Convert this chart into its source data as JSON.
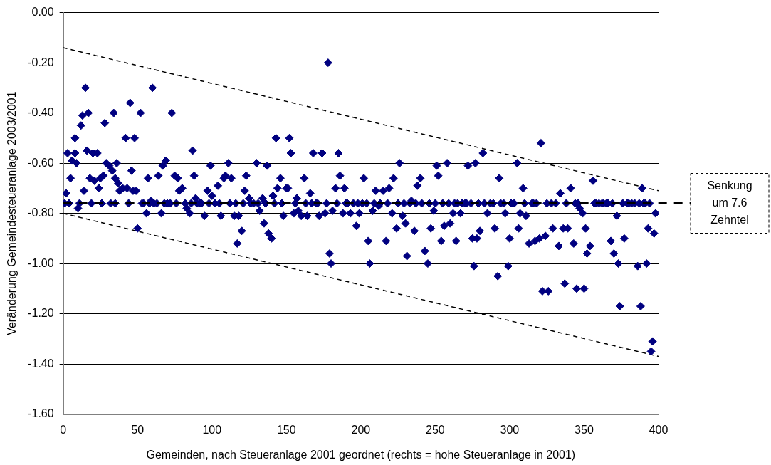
{
  "chart_data": {
    "type": "scatter",
    "xlabel": "Gemeinden, nach Steueranlage 2001 geordnet (rechts = hohe Steueranlage in 2001)",
    "ylabel": "Veränderung Gemeindesteueranlage 2003/2001",
    "xlim": [
      0,
      400
    ],
    "xticks": [
      0,
      50,
      100,
      150,
      200,
      250,
      300,
      350,
      400
    ],
    "ylim": [
      -1.6,
      0
    ],
    "yticks": [
      {
        "value": -1.6,
        "label": "-1.60"
      },
      {
        "value": -1.4,
        "label": "-1.40"
      },
      {
        "value": -1.2,
        "label": "-1.20"
      },
      {
        "value": -1,
        "label": "-1.00"
      },
      {
        "value": -0.8,
        "label": "-0.80"
      },
      {
        "value": -0.6,
        "label": "-0.60"
      },
      {
        "value": -0.4,
        "label": "-0.40"
      },
      {
        "value": -0.2,
        "label": "-0.20"
      },
      {
        "value": 0,
        "label": "0.00"
      }
    ],
    "grid": "y",
    "legend": false,
    "marker": "diamond",
    "ref_lines": [
      {
        "axis": "y",
        "value": -0.76,
        "label": "Senkung um 7.6 Zehntel",
        "color": "#000000",
        "line_style": "dashed"
      }
    ],
    "series": [
      {
        "color": "#000080",
        "x": [
          1,
          2,
          3,
          5,
          6,
          8,
          8,
          9,
          10,
          12,
          13,
          14,
          15,
          16,
          17,
          18,
          20,
          21,
          23,
          24,
          25,
          27,
          28,
          29,
          31,
          32,
          33,
          34,
          35,
          36,
          37,
          38,
          40,
          42,
          43,
          45,
          46,
          47,
          48,
          49,
          50,
          52,
          54,
          56,
          57,
          59,
          60,
          63,
          64,
          66,
          67,
          69,
          72,
          73,
          75,
          77,
          78,
          80,
          83,
          85,
          87,
          88,
          89,
          92,
          95,
          97,
          99,
          100,
          102,
          104,
          106,
          108,
          109,
          111,
          113,
          115,
          117,
          118,
          120,
          122,
          123,
          125,
          128,
          130,
          132,
          134,
          135,
          137,
          138,
          140,
          141,
          143,
          144,
          146,
          148,
          150,
          151,
          152,
          153,
          155,
          157,
          158,
          160,
          162,
          164,
          166,
          168,
          170,
          172,
          174,
          176,
          178,
          179,
          180,
          181,
          183,
          185,
          186,
          188,
          189,
          191,
          193,
          195,
          197,
          199,
          202,
          204,
          205,
          206,
          208,
          210,
          212,
          215,
          217,
          219,
          221,
          222,
          224,
          226,
          228,
          230,
          231,
          234,
          236,
          238,
          240,
          243,
          245,
          247,
          249,
          251,
          252,
          254,
          256,
          258,
          260,
          262,
          264,
          265,
          267,
          270,
          272,
          275,
          276,
          277,
          278,
          280,
          282,
          285,
          290,
          292,
          293,
          297,
          299,
          300,
          303,
          305,
          306,
          307,
          309,
          311,
          313,
          315,
          317,
          320,
          321,
          322,
          324,
          326,
          329,
          333,
          334,
          336,
          337,
          339,
          341,
          343,
          345,
          347,
          349,
          350,
          351,
          352,
          354,
          356,
          358,
          362,
          365,
          368,
          370,
          372,
          373,
          374,
          377,
          380,
          386,
          388,
          389,
          391,
          392,
          393,
          395,
          396,
          397,
          398,
          4,
          11,
          19,
          26,
          35,
          44,
          53,
          58,
          61,
          68,
          70,
          76,
          82,
          86,
          90,
          93,
          98,
          105,
          112,
          116,
          121,
          126,
          131,
          136,
          142,
          147,
          156,
          163,
          167,
          171,
          177,
          184,
          190,
          198,
          201,
          209,
          213,
          218,
          225,
          229,
          233,
          237,
          241,
          246,
          250,
          255,
          259,
          263,
          268,
          271,
          274,
          279,
          283,
          287,
          289,
          294,
          296,
          301,
          310,
          316,
          318,
          325,
          328,
          331,
          338,
          344,
          346,
          357,
          360,
          363,
          366,
          369,
          376,
          379,
          382,
          384,
          387,
          390,
          394
        ],
        "values": [
          -0.76,
          -0.72,
          -0.56,
          -0.66,
          -0.59,
          -0.5,
          -0.56,
          -0.6,
          -0.78,
          -0.45,
          -0.41,
          -0.71,
          -0.3,
          -0.55,
          -0.4,
          -0.66,
          -0.56,
          -0.67,
          -0.56,
          -0.7,
          -0.66,
          -0.65,
          -0.44,
          -0.6,
          -0.61,
          -0.76,
          -0.63,
          -0.4,
          -0.66,
          -0.6,
          -0.68,
          -0.71,
          -0.7,
          -0.5,
          -0.7,
          -0.36,
          -0.63,
          -0.71,
          -0.5,
          -0.71,
          -0.86,
          -0.4,
          -0.76,
          -0.8,
          -0.66,
          -0.75,
          -0.3,
          -0.76,
          -0.65,
          -0.8,
          -0.61,
          -0.59,
          -0.76,
          -0.4,
          -0.65,
          -0.66,
          -0.71,
          -0.7,
          -0.78,
          -0.8,
          -0.55,
          -0.65,
          -0.74,
          -0.76,
          -0.81,
          -0.71,
          -0.61,
          -0.73,
          -0.76,
          -0.69,
          -0.81,
          -0.66,
          -0.65,
          -0.6,
          -0.66,
          -0.81,
          -0.92,
          -0.81,
          -0.87,
          -0.71,
          -0.65,
          -0.74,
          -0.76,
          -0.6,
          -0.79,
          -0.74,
          -0.84,
          -0.61,
          -0.88,
          -0.9,
          -0.73,
          -0.5,
          -0.7,
          -0.66,
          -0.81,
          -0.7,
          -0.7,
          -0.5,
          -0.56,
          -0.8,
          -0.74,
          -0.79,
          -0.81,
          -0.66,
          -0.81,
          -0.72,
          -0.56,
          -0.76,
          -0.81,
          -0.56,
          -0.8,
          -0.2,
          -0.96,
          -1,
          -0.79,
          -0.7,
          -0.56,
          -0.65,
          -0.8,
          -0.7,
          -0.76,
          -0.8,
          -0.76,
          -0.85,
          -0.8,
          -0.66,
          -0.76,
          -0.91,
          -1,
          -0.79,
          -0.71,
          -0.77,
          -0.71,
          -0.91,
          -0.7,
          -0.8,
          -0.66,
          -0.86,
          -0.6,
          -0.81,
          -0.84,
          -0.97,
          -0.75,
          -0.87,
          -0.69,
          -0.66,
          -0.95,
          -1,
          -0.86,
          -0.79,
          -0.61,
          -0.65,
          -0.91,
          -0.85,
          -0.6,
          -0.84,
          -0.8,
          -0.91,
          -0.76,
          -0.8,
          -0.76,
          -0.61,
          -0.9,
          -1.01,
          -0.6,
          -0.9,
          -0.87,
          -0.56,
          -0.8,
          -0.86,
          -1.05,
          -0.66,
          -0.8,
          -1.01,
          -0.9,
          -0.76,
          -0.6,
          -0.86,
          -0.8,
          -0.7,
          -0.81,
          -0.92,
          -0.76,
          -0.91,
          -0.9,
          -0.52,
          -1.11,
          -0.89,
          -1.11,
          -0.86,
          -0.93,
          -0.72,
          -0.86,
          -1.08,
          -0.86,
          -0.7,
          -0.92,
          -1.1,
          -0.78,
          -0.8,
          -1.1,
          -0.86,
          -0.96,
          -0.93,
          -0.67,
          -0.76,
          -0.76,
          -0.76,
          -0.91,
          -0.96,
          -0.81,
          -1,
          -1.17,
          -0.9,
          -0.76,
          -1.01,
          -1.17,
          -0.7,
          -0.76,
          -1,
          -0.86,
          -1.35,
          -1.31,
          -0.88,
          -0.8,
          -0.76,
          -0.76,
          -0.76,
          -0.76,
          -0.76,
          -0.76,
          -0.76,
          -0.76,
          -0.76,
          -0.76,
          -0.76,
          -0.76,
          -0.76,
          -0.76,
          -0.76,
          -0.76,
          -0.76,
          -0.76,
          -0.76,
          -0.76,
          -0.76,
          -0.76,
          -0.76,
          -0.76,
          -0.76,
          -0.76,
          -0.76,
          -0.76,
          -0.76,
          -0.76,
          -0.76,
          -0.76,
          -0.76,
          -0.76,
          -0.76,
          -0.76,
          -0.76,
          -0.76,
          -0.76,
          -0.76,
          -0.76,
          -0.76,
          -0.76,
          -0.76,
          -0.76,
          -0.76,
          -0.76,
          -0.76,
          -0.76,
          -0.76,
          -0.76,
          -0.76,
          -0.76,
          -0.76,
          -0.76,
          -0.76,
          -0.76,
          -0.76,
          -0.76,
          -0.76,
          -0.76,
          -0.76,
          -0.76,
          -0.76,
          -0.76,
          -0.76,
          -0.76,
          -0.76,
          -0.76,
          -0.76,
          -0.76,
          -0.76,
          -0.76,
          -0.76,
          -0.76,
          -0.76,
          -0.76,
          -0.76,
          -0.76
        ]
      },
      {
        "type": "line",
        "color": "#000000",
        "line_style": "dashed",
        "marker": "none",
        "x": [
          0,
          400
        ],
        "values": [
          -0.14,
          -0.71
        ]
      },
      {
        "type": "line",
        "color": "#000000",
        "line_style": "dashed",
        "marker": "none",
        "x": [
          0,
          400
        ],
        "values": [
          -0.8,
          -1.37
        ]
      }
    ]
  }
}
